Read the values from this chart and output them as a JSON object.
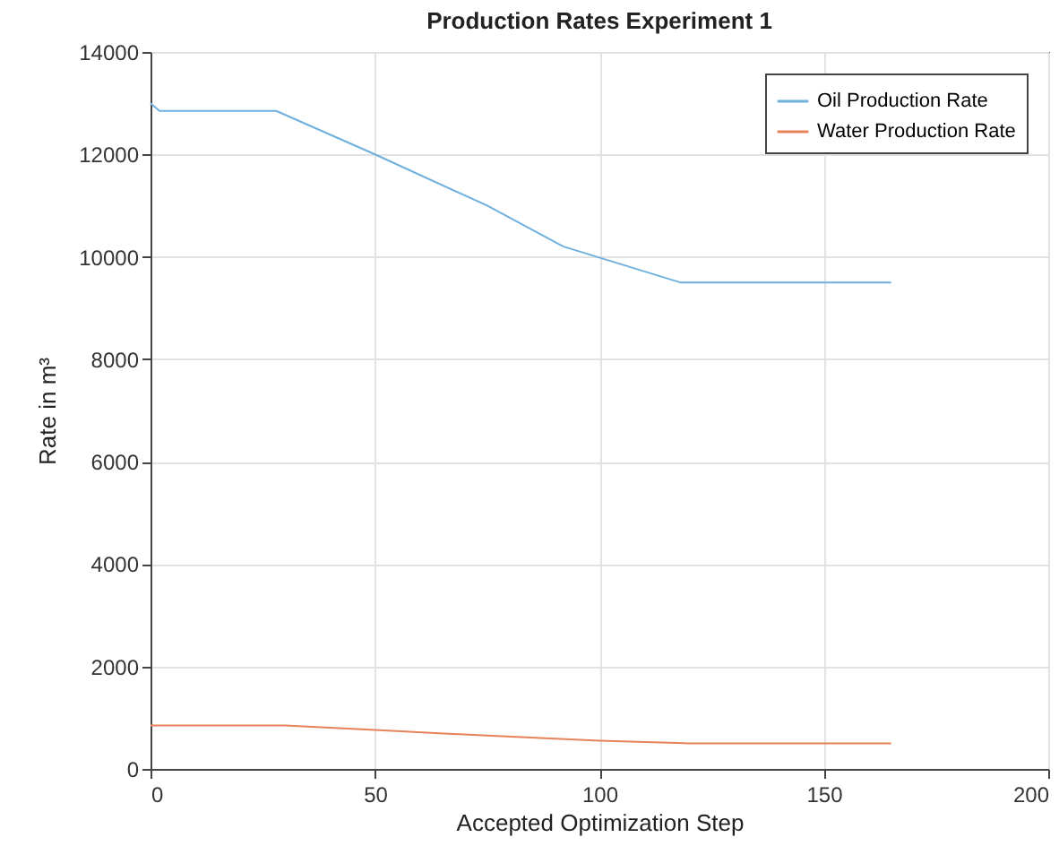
{
  "chart_data": {
    "type": "line",
    "title": "Production Rates Experiment 1",
    "xlabel": "Accepted Optimization Step",
    "ylabel": "Rate in m³",
    "xlim": [
      0,
      200
    ],
    "xticks": [
      0,
      50,
      100,
      150,
      200
    ],
    "ylim": [
      0,
      14000
    ],
    "yticks": [
      0,
      2000,
      4000,
      6000,
      8000,
      10000,
      12000,
      14000
    ],
    "grid": true,
    "legend": "top right",
    "series": [
      {
        "name": "Oil Production Rate",
        "color": "#6fb0de",
        "x": [
          0,
          2,
          28,
          50,
          75,
          92,
          118,
          165
        ],
        "values": [
          13000,
          12850,
          12850,
          12000,
          11000,
          10200,
          9500,
          9500
        ]
      },
      {
        "name": "Water Production Rate",
        "color": "#e8825a",
        "x": [
          0,
          30,
          50,
          75,
          100,
          120,
          165
        ],
        "values": [
          850,
          850,
          760,
          650,
          550,
          500,
          500
        ]
      }
    ]
  }
}
